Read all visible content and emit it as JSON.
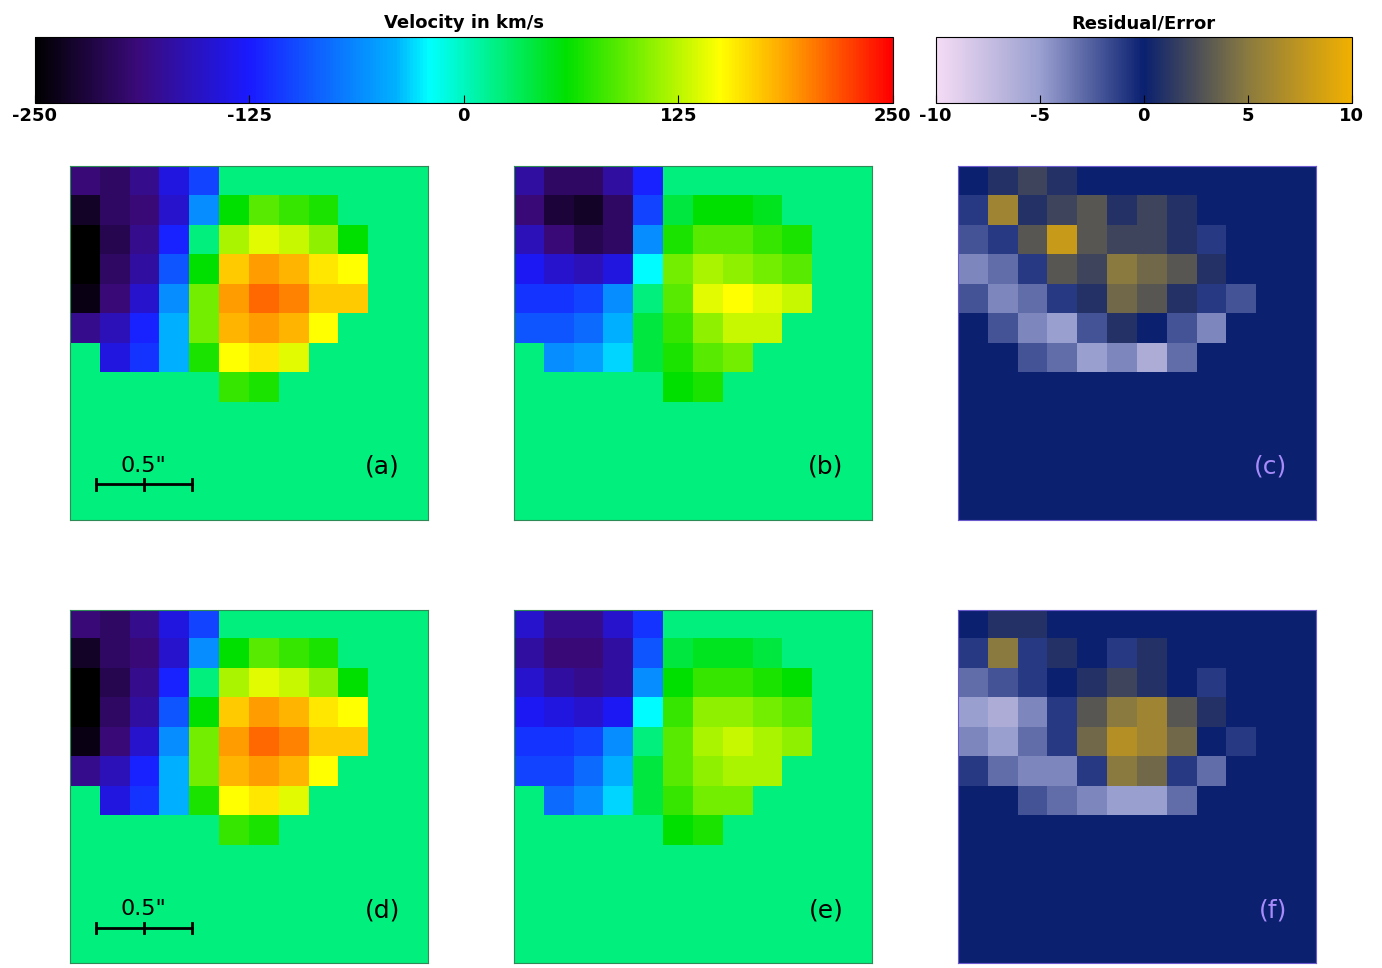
{
  "chart_data": {
    "type": "heatmap",
    "tick_labels": false,
    "colorbars": [
      {
        "title": "Velocity in km/s",
        "range": [
          -250,
          250
        ],
        "ticks": [
          -250,
          -125,
          0,
          125,
          250
        ]
      },
      {
        "title": "Residual/Error",
        "range": [
          -10,
          10
        ],
        "ticks": [
          -10,
          -5,
          0,
          5,
          10
        ]
      }
    ],
    "panels": [
      {
        "label": "(a)",
        "colorbar": 0,
        "scale_bar": "0.5\"",
        "cells": [
          [
            -190,
            -200,
            -180,
            -140,
            -100,
            20,
            20,
            20,
            20,
            20,
            20,
            20
          ],
          [
            -230,
            -200,
            -190,
            -150,
            -60,
            60,
            90,
            80,
            70,
            20,
            20,
            20
          ],
          [
            -250,
            -210,
            -180,
            -120,
            20,
            120,
            140,
            130,
            110,
            60,
            20,
            20
          ],
          [
            -250,
            -200,
            -170,
            -90,
            60,
            170,
            190,
            180,
            160,
            150,
            20,
            20
          ],
          [
            -240,
            -190,
            -150,
            -60,
            100,
            190,
            210,
            200,
            170,
            170,
            20,
            20
          ],
          [
            -180,
            -160,
            -120,
            -40,
            100,
            180,
            190,
            180,
            150,
            20,
            20,
            20
          ],
          [
            20,
            -140,
            -110,
            -40,
            70,
            150,
            160,
            140,
            20,
            20,
            20,
            20
          ],
          [
            20,
            20,
            20,
            20,
            20,
            80,
            70,
            20,
            20,
            20,
            20,
            20
          ],
          [
            20,
            20,
            20,
            20,
            20,
            20,
            20,
            20,
            20,
            20,
            20,
            20
          ],
          [
            20,
            20,
            20,
            20,
            20,
            20,
            20,
            20,
            20,
            20,
            20,
            20
          ],
          [
            20,
            20,
            20,
            20,
            20,
            20,
            20,
            20,
            20,
            20,
            20,
            20
          ],
          [
            20,
            20,
            20,
            20,
            20,
            20,
            20,
            20,
            20,
            20,
            20,
            20
          ]
        ]
      },
      {
        "label": "(b)",
        "colorbar": 0,
        "cells": [
          [
            -170,
            -200,
            -200,
            -170,
            -120,
            20,
            20,
            20,
            20,
            20,
            20,
            20
          ],
          [
            -190,
            -220,
            -230,
            -200,
            -100,
            40,
            60,
            60,
            50,
            20,
            20,
            20
          ],
          [
            -160,
            -190,
            -210,
            -200,
            -60,
            70,
            90,
            90,
            80,
            70,
            20,
            20
          ],
          [
            -130,
            -150,
            -160,
            -140,
            -20,
            100,
            120,
            110,
            100,
            90,
            20,
            20
          ],
          [
            -110,
            -110,
            -100,
            -60,
            20,
            90,
            140,
            150,
            140,
            130,
            20,
            20
          ],
          [
            -90,
            -90,
            -80,
            -40,
            40,
            80,
            110,
            130,
            130,
            20,
            20,
            20
          ],
          [
            20,
            -60,
            -50,
            -30,
            40,
            70,
            90,
            100,
            20,
            20,
            20,
            20
          ],
          [
            20,
            20,
            20,
            20,
            20,
            60,
            70,
            20,
            20,
            20,
            20,
            20
          ],
          [
            20,
            20,
            20,
            20,
            20,
            20,
            20,
            20,
            20,
            20,
            20,
            20
          ],
          [
            20,
            20,
            20,
            20,
            20,
            20,
            20,
            20,
            20,
            20,
            20,
            20
          ],
          [
            20,
            20,
            20,
            20,
            20,
            20,
            20,
            20,
            20,
            20,
            20,
            20
          ],
          [
            20,
            20,
            20,
            20,
            20,
            20,
            20,
            20,
            20,
            20,
            20,
            20
          ]
        ]
      },
      {
        "label": "(c)",
        "colorbar": 1,
        "cells": [
          [
            0,
            1,
            2,
            1,
            0,
            0,
            0,
            0,
            0,
            0,
            0,
            0
          ],
          [
            -1,
            6,
            1,
            2,
            3,
            1,
            2,
            1,
            0,
            0,
            0,
            0
          ],
          [
            -2,
            -1,
            3,
            8,
            3,
            2,
            2,
            1,
            -1,
            0,
            0,
            0
          ],
          [
            -4,
            -3,
            -1,
            3,
            2,
            5,
            4,
            3,
            1,
            0,
            0,
            0
          ],
          [
            -2,
            -4,
            -3,
            -1,
            1,
            4,
            3,
            1,
            -1,
            -2,
            0,
            0
          ],
          [
            0,
            -2,
            -4,
            -5,
            -2,
            1,
            0,
            -2,
            -4,
            0,
            0,
            0
          ],
          [
            0,
            0,
            -2,
            -3,
            -5,
            -4,
            -6,
            -3,
            0,
            0,
            0,
            0
          ],
          [
            0,
            0,
            0,
            0,
            0,
            0,
            0,
            0,
            0,
            0,
            0,
            0
          ],
          [
            0,
            0,
            0,
            0,
            0,
            0,
            0,
            0,
            0,
            0,
            0,
            0
          ],
          [
            0,
            0,
            0,
            0,
            0,
            0,
            0,
            0,
            0,
            0,
            0,
            0
          ],
          [
            0,
            0,
            0,
            0,
            0,
            0,
            0,
            0,
            0,
            0,
            0,
            0
          ],
          [
            0,
            0,
            0,
            0,
            0,
            0,
            0,
            0,
            0,
            0,
            0,
            0
          ]
        ]
      },
      {
        "label": "(d)",
        "colorbar": 0,
        "scale_bar": "0.5\"",
        "cells": [
          [
            -190,
            -200,
            -180,
            -140,
            -100,
            20,
            20,
            20,
            20,
            20,
            20,
            20
          ],
          [
            -230,
            -200,
            -190,
            -150,
            -60,
            60,
            90,
            80,
            70,
            20,
            20,
            20
          ],
          [
            -250,
            -210,
            -180,
            -120,
            20,
            120,
            140,
            130,
            110,
            60,
            20,
            20
          ],
          [
            -250,
            -200,
            -170,
            -90,
            60,
            170,
            190,
            180,
            160,
            150,
            20,
            20
          ],
          [
            -240,
            -190,
            -150,
            -60,
            100,
            190,
            210,
            200,
            170,
            170,
            20,
            20
          ],
          [
            -180,
            -160,
            -120,
            -40,
            100,
            180,
            190,
            180,
            150,
            20,
            20,
            20
          ],
          [
            20,
            -140,
            -110,
            -40,
            70,
            150,
            160,
            140,
            20,
            20,
            20,
            20
          ],
          [
            20,
            20,
            20,
            20,
            20,
            80,
            70,
            20,
            20,
            20,
            20,
            20
          ],
          [
            20,
            20,
            20,
            20,
            20,
            20,
            20,
            20,
            20,
            20,
            20,
            20
          ],
          [
            20,
            20,
            20,
            20,
            20,
            20,
            20,
            20,
            20,
            20,
            20,
            20
          ],
          [
            20,
            20,
            20,
            20,
            20,
            20,
            20,
            20,
            20,
            20,
            20,
            20
          ],
          [
            20,
            20,
            20,
            20,
            20,
            20,
            20,
            20,
            20,
            20,
            20,
            20
          ]
        ]
      },
      {
        "label": "(e)",
        "colorbar": 0,
        "cells": [
          [
            -150,
            -180,
            -180,
            -150,
            -110,
            20,
            20,
            20,
            20,
            20,
            20,
            20
          ],
          [
            -170,
            -190,
            -190,
            -170,
            -90,
            40,
            50,
            50,
            40,
            20,
            20,
            20
          ],
          [
            -150,
            -170,
            -180,
            -170,
            -60,
            60,
            80,
            80,
            70,
            60,
            20,
            20
          ],
          [
            -130,
            -140,
            -150,
            -130,
            -20,
            80,
            110,
            110,
            100,
            90,
            20,
            20
          ],
          [
            -110,
            -110,
            -100,
            -60,
            20,
            90,
            120,
            130,
            120,
            110,
            20,
            20
          ],
          [
            -100,
            -100,
            -80,
            -40,
            40,
            90,
            110,
            120,
            120,
            20,
            20,
            20
          ],
          [
            20,
            -80,
            -60,
            -30,
            40,
            80,
            100,
            100,
            20,
            20,
            20,
            20
          ],
          [
            20,
            20,
            20,
            20,
            20,
            60,
            70,
            20,
            20,
            20,
            20,
            20
          ],
          [
            20,
            20,
            20,
            20,
            20,
            20,
            20,
            20,
            20,
            20,
            20,
            20
          ],
          [
            20,
            20,
            20,
            20,
            20,
            20,
            20,
            20,
            20,
            20,
            20,
            20
          ],
          [
            20,
            20,
            20,
            20,
            20,
            20,
            20,
            20,
            20,
            20,
            20,
            20
          ],
          [
            20,
            20,
            20,
            20,
            20,
            20,
            20,
            20,
            20,
            20,
            20,
            20
          ]
        ]
      },
      {
        "label": "(f)",
        "colorbar": 1,
        "cells": [
          [
            0,
            1,
            1,
            0,
            0,
            0,
            0,
            0,
            0,
            0,
            0,
            0
          ],
          [
            -1,
            5,
            -1,
            1,
            0,
            -1,
            1,
            0,
            0,
            0,
            0,
            0
          ],
          [
            -3,
            -2,
            -1,
            0,
            1,
            2,
            1,
            0,
            -1,
            0,
            0,
            0
          ],
          [
            -5,
            -6,
            -4,
            -1,
            3,
            5,
            6,
            3,
            1,
            0,
            0,
            0
          ],
          [
            -4,
            -5,
            -3,
            -1,
            4,
            7,
            6,
            4,
            0,
            -1,
            0,
            0
          ],
          [
            -1,
            -3,
            -4,
            -4,
            -1,
            5,
            4,
            -1,
            -3,
            0,
            0,
            0
          ],
          [
            0,
            0,
            -2,
            -3,
            -4,
            -5,
            -5,
            -3,
            0,
            0,
            0,
            0
          ],
          [
            0,
            0,
            0,
            0,
            0,
            0,
            0,
            0,
            0,
            0,
            0,
            0
          ],
          [
            0,
            0,
            0,
            0,
            0,
            0,
            0,
            0,
            0,
            0,
            0,
            0
          ],
          [
            0,
            0,
            0,
            0,
            0,
            0,
            0,
            0,
            0,
            0,
            0,
            0
          ],
          [
            0,
            0,
            0,
            0,
            0,
            0,
            0,
            0,
            0,
            0,
            0,
            0
          ],
          [
            0,
            0,
            0,
            0,
            0,
            0,
            0,
            0,
            0,
            0,
            0,
            0
          ]
        ]
      }
    ]
  }
}
